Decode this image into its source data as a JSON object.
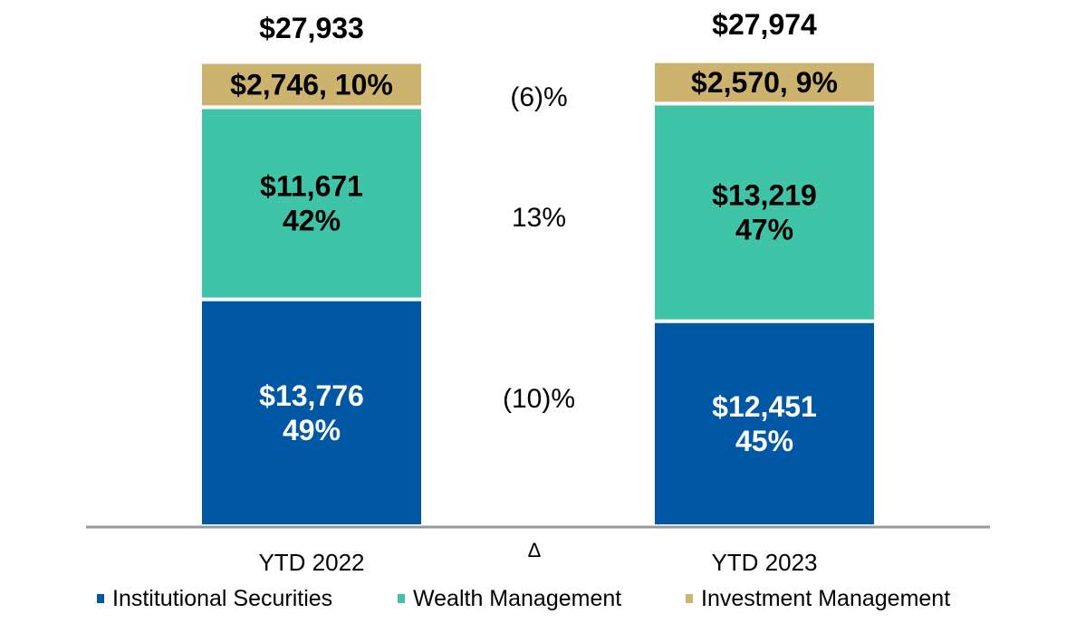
{
  "chart_data": {
    "type": "bar",
    "stacked": true,
    "categories": [
      "YTD 2022",
      "YTD 2023"
    ],
    "totals": [
      "$27,933",
      "$27,974"
    ],
    "total_values": [
      27933,
      27974
    ],
    "series": [
      {
        "name": "Institutional Securities",
        "color": "#0057A4",
        "values": [
          13776,
          12451
        ],
        "labels": [
          [
            "$13,776",
            "49%"
          ],
          [
            "$12,451",
            "45%"
          ]
        ],
        "label_color": "#ffffff"
      },
      {
        "name": "Wealth Management",
        "color": "#3FC4A8",
        "values": [
          11671,
          13219
        ],
        "labels": [
          [
            "$11,671",
            "42%"
          ],
          [
            "$13,219",
            "47%"
          ]
        ],
        "label_color": "#000000"
      },
      {
        "name": "Investment Management",
        "color": "#CDB46E",
        "values": [
          2746,
          2570
        ],
        "labels": [
          [
            "$2,746, 10%"
          ],
          [
            "$2,570, 9%"
          ]
        ],
        "label_color": "#000000"
      }
    ],
    "change_header": "Δ",
    "changes": [
      "(10)%",
      "13%",
      "(6)%"
    ],
    "legend": "bottom",
    "grid": false,
    "axis_color": "#999999"
  }
}
